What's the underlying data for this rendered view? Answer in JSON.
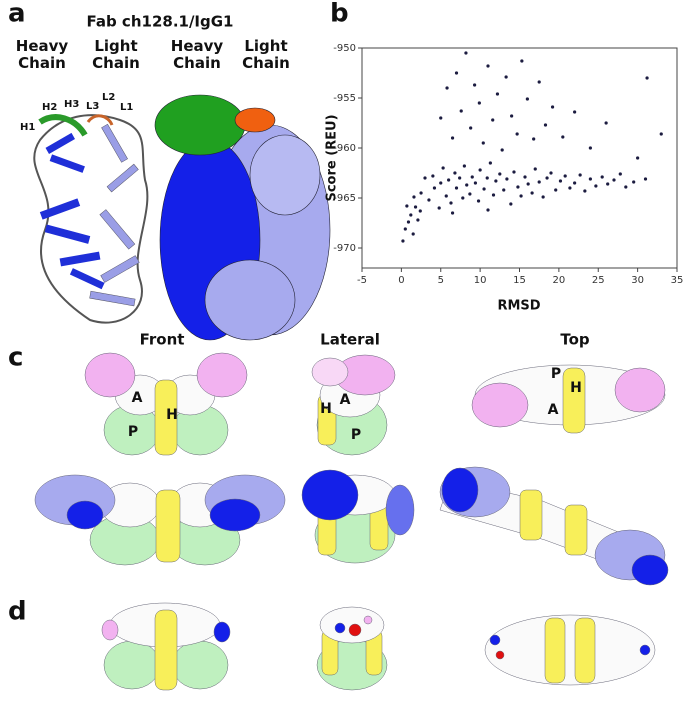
{
  "panel_labels": [
    "a",
    "b",
    "c",
    "d"
  ],
  "panel_a": {
    "title": "Fab ch128.1/IgG1",
    "chain_labels": [
      "Heavy\nChain",
      "Light\nChain",
      "Heavy\nChain",
      "Light\nChain"
    ],
    "loop_labels": [
      "H1",
      "H2",
      "H3",
      "L3",
      "L2",
      "L1"
    ]
  },
  "panel_c": {
    "views": [
      "Front",
      "Lateral",
      "Top"
    ],
    "front_labels": [
      "A",
      "H",
      "P"
    ],
    "lateral_labels": [
      "H",
      "A",
      "P"
    ],
    "top_labels": [
      "P",
      "H",
      "A"
    ]
  },
  "chart_data": {
    "type": "scatter",
    "x_label": "RMSD",
    "y_label": "Score (REU)",
    "xlim": [
      -5,
      35
    ],
    "ylim": [
      -972,
      -950
    ],
    "xticks": [
      -5,
      0,
      5,
      10,
      15,
      20,
      25,
      30,
      35
    ],
    "yticks": [
      -950,
      -955,
      -960,
      -965,
      -970
    ],
    "color": "#1c1c40",
    "x": [
      2.5,
      3,
      3.5,
      4,
      4.2,
      4.8,
      5,
      5.3,
      5.7,
      6,
      6.3,
      6.8,
      7,
      7.4,
      7.8,
      8,
      8.3,
      8.7,
      9,
      9.4,
      9.8,
      10,
      10.5,
      10.9,
      11.3,
      11.7,
      12,
      12.5,
      13,
      13.4,
      13.9,
      14.3,
      14.8,
      15.2,
      15.7,
      16.1,
      16.6,
      17,
      17.5,
      18,
      18.5,
      19,
      19.6,
      20.2,
      20.8,
      21.4,
      22,
      22.7,
      23.3,
      24,
      24.7,
      25.5,
      26.2,
      27,
      27.8,
      28.5,
      29.5,
      31,
      6.5,
      11,
      5,
      5.8,
      6.5,
      7,
      7.6,
      8.2,
      8.8,
      9.3,
      9.9,
      10.4,
      11,
      11.6,
      12.2,
      12.8,
      13.3,
      14,
      14.7,
      15.3,
      16,
      16.8,
      17.5,
      18.3,
      19.2,
      20.5,
      22,
      24,
      26,
      30,
      31.2,
      33,
      0.2,
      0.5,
      0.9,
      1.2,
      1.5,
      1.8,
      2.1,
      2.4,
      0.7,
      1.6
    ],
    "y": [
      -964.5,
      -963,
      -965.2,
      -962.8,
      -964,
      -966,
      -963.5,
      -962,
      -964.8,
      -963.2,
      -965.5,
      -962.5,
      -964,
      -963,
      -965,
      -961.8,
      -963.7,
      -964.6,
      -962.9,
      -963.5,
      -965.3,
      -962.2,
      -964.1,
      -963,
      -961.5,
      -964.7,
      -963.3,
      -962.6,
      -964.2,
      -963.1,
      -965.6,
      -962.4,
      -963.9,
      -964.8,
      -962.9,
      -963.6,
      -964.5,
      -962.1,
      -963.4,
      -964.9,
      -963,
      -962.5,
      -964.2,
      -963.3,
      -962.8,
      -964,
      -963.5,
      -962.7,
      -964.3,
      -963.1,
      -963.8,
      -962.9,
      -963.6,
      -963.2,
      -962.6,
      -963.9,
      -963.4,
      -963.1,
      -966.5,
      -966.2,
      -957,
      -954,
      -959,
      -952.5,
      -956.3,
      -950.5,
      -958,
      -953.7,
      -955.5,
      -959.5,
      -951.8,
      -957.2,
      -954.6,
      -960.2,
      -952.9,
      -956.8,
      -958.6,
      -951.3,
      -955.1,
      -959.1,
      -953.4,
      -957.7,
      -955.9,
      -958.9,
      -956.4,
      -960,
      -957.5,
      -961,
      -953,
      -958.6,
      -969.3,
      -968.1,
      -967.4,
      -966.7,
      -968.6,
      -965.9,
      -967.2,
      -966.3,
      -965.8,
      -964.9
    ]
  }
}
